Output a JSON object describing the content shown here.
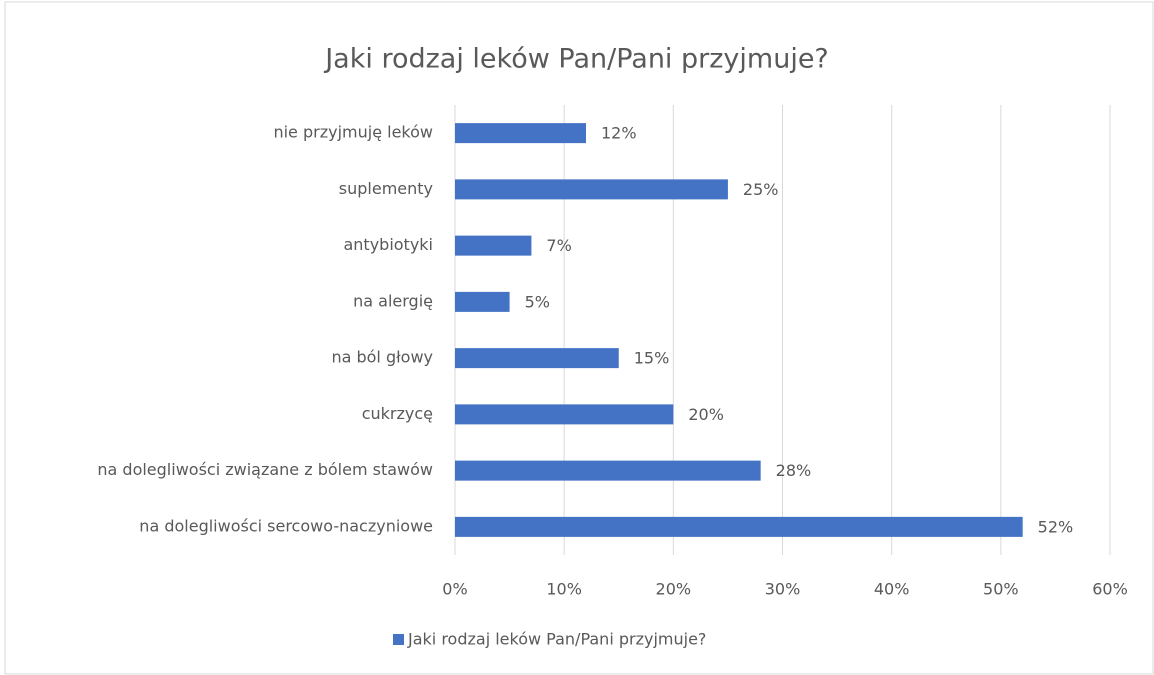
{
  "chart_data": {
    "type": "hbar",
    "title": "Jaki rodzaj leków Pan/Pani przyjmuje?",
    "categories": [
      "nie przyjmuję leków",
      "suplementy",
      "antybiotyki",
      "na alergię",
      "na ból głowy",
      "cukrzycę",
      "na dolegliwości związane z bólem stawów",
      "na dolegliwości sercowo-naczyniowe"
    ],
    "series": [
      {
        "name": "Jaki rodzaj leków Pan/Pani przyjmuje?",
        "color": "#4472c4",
        "values": [
          12,
          25,
          7,
          5,
          15,
          20,
          28,
          52
        ],
        "value_labels": [
          "12%",
          "25%",
          "7%",
          "5%",
          "15%",
          "20%",
          "28%",
          "52%"
        ]
      }
    ],
    "xlim": [
      0,
      60
    ],
    "xticks": [
      {
        "value": 0,
        "label": "0%"
      },
      {
        "value": 10,
        "label": "10%"
      },
      {
        "value": 20,
        "label": "20%"
      },
      {
        "value": 30,
        "label": "30%"
      },
      {
        "value": 40,
        "label": "40%"
      },
      {
        "value": 50,
        "label": "50%"
      },
      {
        "value": 60,
        "label": "60%"
      }
    ],
    "grid": true,
    "legend": "bottom"
  }
}
